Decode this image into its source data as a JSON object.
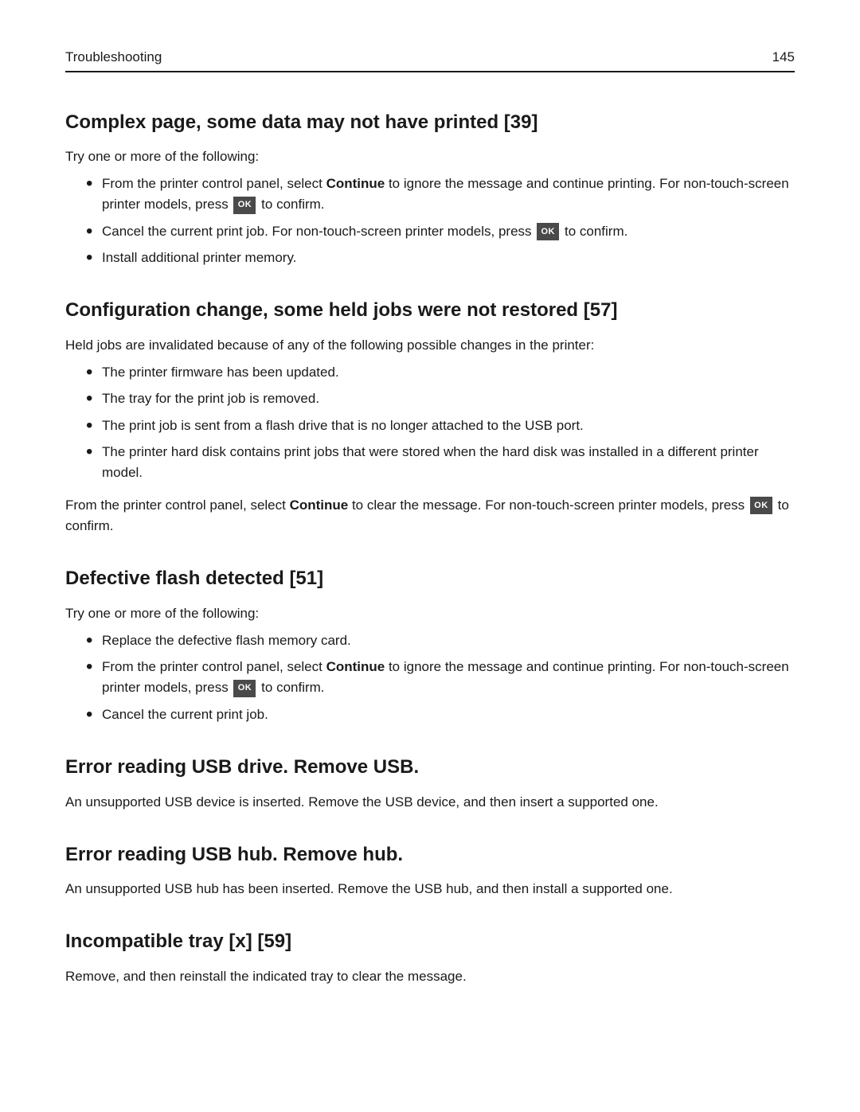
{
  "header": {
    "section": "Troubleshooting",
    "page": "145"
  },
  "ok_label": "OK",
  "s1": {
    "title": "Complex page, some data may not have printed [39]",
    "intro": "Try one or more of the following:",
    "b1_a": "From the printer control panel, select ",
    "b1_bold": "Continue",
    "b1_b": " to ignore the message and continue printing. For non‑touch‑screen printer models, press ",
    "b1_c": " to confirm.",
    "b2_a": "Cancel the current print job. For non‑touch‑screen printer models, press ",
    "b2_b": " to confirm.",
    "b3": "Install additional printer memory."
  },
  "s2": {
    "title": "Configuration change, some held jobs were not restored [57]",
    "intro": "Held jobs are invalidated because of any of the following possible changes in the printer:",
    "b1": "The printer firmware has been updated.",
    "b2": "The tray for the print job is removed.",
    "b3": "The print job is sent from a flash drive that is no longer attached to the USB port.",
    "b4": "The printer hard disk contains print jobs that were stored when the hard disk was installed in a different printer model.",
    "after_a": "From the printer control panel, select ",
    "after_bold": "Continue",
    "after_b": " to clear the message. For non‑touch‑screen printer models, press ",
    "after_c": " to confirm."
  },
  "s3": {
    "title": "Defective flash detected [51]",
    "intro": "Try one or more of the following:",
    "b1": "Replace the defective flash memory card.",
    "b2_a": "From the printer control panel, select ",
    "b2_bold": "Continue",
    "b2_b": " to ignore the message and continue printing. For non‑touch‑screen printer models, press ",
    "b2_c": " to confirm.",
    "b3": "Cancel the current print job."
  },
  "s4": {
    "title": "Error reading USB drive. Remove USB.",
    "body": "An unsupported USB device is inserted. Remove the USB device, and then insert a supported one."
  },
  "s5": {
    "title": "Error reading USB hub. Remove hub.",
    "body": "An unsupported USB hub has been inserted. Remove the USB hub, and then install a supported one."
  },
  "s6": {
    "title": "Incompatible tray [x] [59]",
    "body": "Remove, and then reinstall the indicated tray to clear the message."
  }
}
